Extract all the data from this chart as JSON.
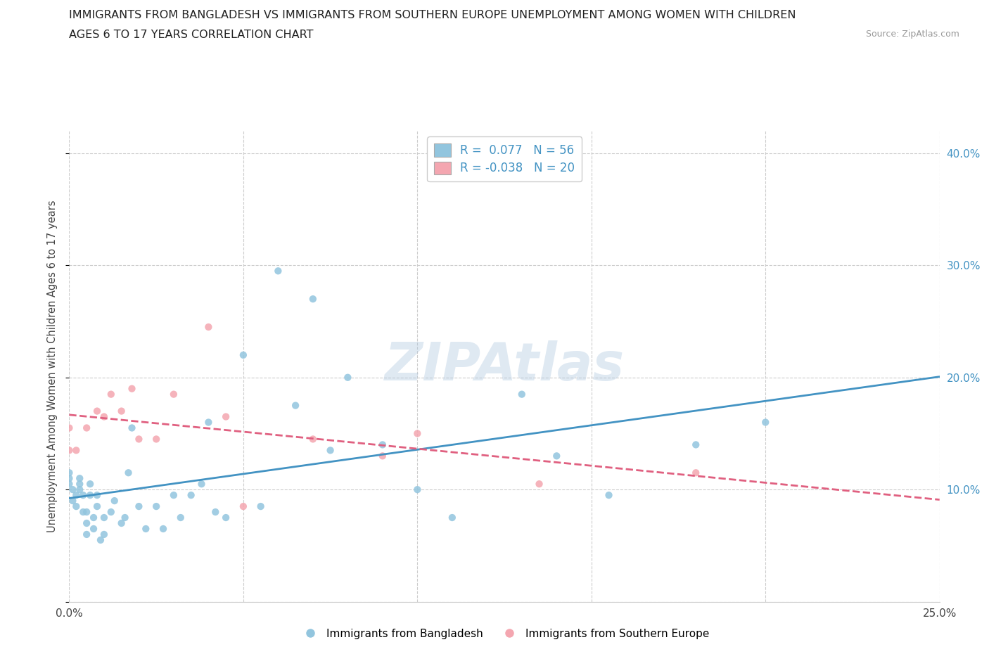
{
  "title_line1": "IMMIGRANTS FROM BANGLADESH VS IMMIGRANTS FROM SOUTHERN EUROPE UNEMPLOYMENT AMONG WOMEN WITH CHILDREN",
  "title_line2": "AGES 6 TO 17 YEARS CORRELATION CHART",
  "source_text": "Source: ZipAtlas.com",
  "ylabel": "Unemployment Among Women with Children Ages 6 to 17 years",
  "xlim": [
    0.0,
    0.25
  ],
  "ylim": [
    0.0,
    0.42
  ],
  "xticks": [
    0.0,
    0.05,
    0.1,
    0.15,
    0.2,
    0.25
  ],
  "yticks": [
    0.0,
    0.1,
    0.2,
    0.3,
    0.4
  ],
  "ytick_labels": [
    "",
    "10.0%",
    "20.0%",
    "30.0%",
    "40.0%"
  ],
  "legend_label1": "Immigrants from Bangladesh",
  "legend_label2": "Immigrants from Southern Europe",
  "color_blue": "#92C5DE",
  "color_pink": "#F4A6B0",
  "line_color_blue": "#4393C3",
  "line_color_pink": "#E06080",
  "bangladesh_x": [
    0.0,
    0.0,
    0.0,
    0.001,
    0.001,
    0.002,
    0.002,
    0.003,
    0.003,
    0.003,
    0.004,
    0.004,
    0.005,
    0.005,
    0.005,
    0.006,
    0.006,
    0.007,
    0.007,
    0.008,
    0.008,
    0.009,
    0.01,
    0.01,
    0.012,
    0.013,
    0.015,
    0.016,
    0.017,
    0.018,
    0.02,
    0.022,
    0.025,
    0.027,
    0.03,
    0.032,
    0.035,
    0.038,
    0.04,
    0.042,
    0.045,
    0.05,
    0.055,
    0.06,
    0.065,
    0.07,
    0.075,
    0.08,
    0.09,
    0.1,
    0.11,
    0.13,
    0.14,
    0.155,
    0.18,
    0.2
  ],
  "bangladesh_y": [
    0.105,
    0.11,
    0.115,
    0.09,
    0.1,
    0.085,
    0.095,
    0.1,
    0.105,
    0.11,
    0.08,
    0.095,
    0.06,
    0.07,
    0.08,
    0.095,
    0.105,
    0.065,
    0.075,
    0.085,
    0.095,
    0.055,
    0.06,
    0.075,
    0.08,
    0.09,
    0.07,
    0.075,
    0.115,
    0.155,
    0.085,
    0.065,
    0.085,
    0.065,
    0.095,
    0.075,
    0.095,
    0.105,
    0.16,
    0.08,
    0.075,
    0.22,
    0.085,
    0.295,
    0.175,
    0.27,
    0.135,
    0.2,
    0.14,
    0.1,
    0.075,
    0.185,
    0.13,
    0.095,
    0.14,
    0.16
  ],
  "southern_europe_x": [
    0.0,
    0.0,
    0.002,
    0.005,
    0.008,
    0.01,
    0.012,
    0.015,
    0.018,
    0.02,
    0.025,
    0.03,
    0.04,
    0.045,
    0.05,
    0.07,
    0.09,
    0.1,
    0.135,
    0.18
  ],
  "southern_europe_y": [
    0.135,
    0.155,
    0.135,
    0.155,
    0.17,
    0.165,
    0.185,
    0.17,
    0.19,
    0.145,
    0.145,
    0.185,
    0.245,
    0.165,
    0.085,
    0.145,
    0.13,
    0.15,
    0.105,
    0.115
  ]
}
